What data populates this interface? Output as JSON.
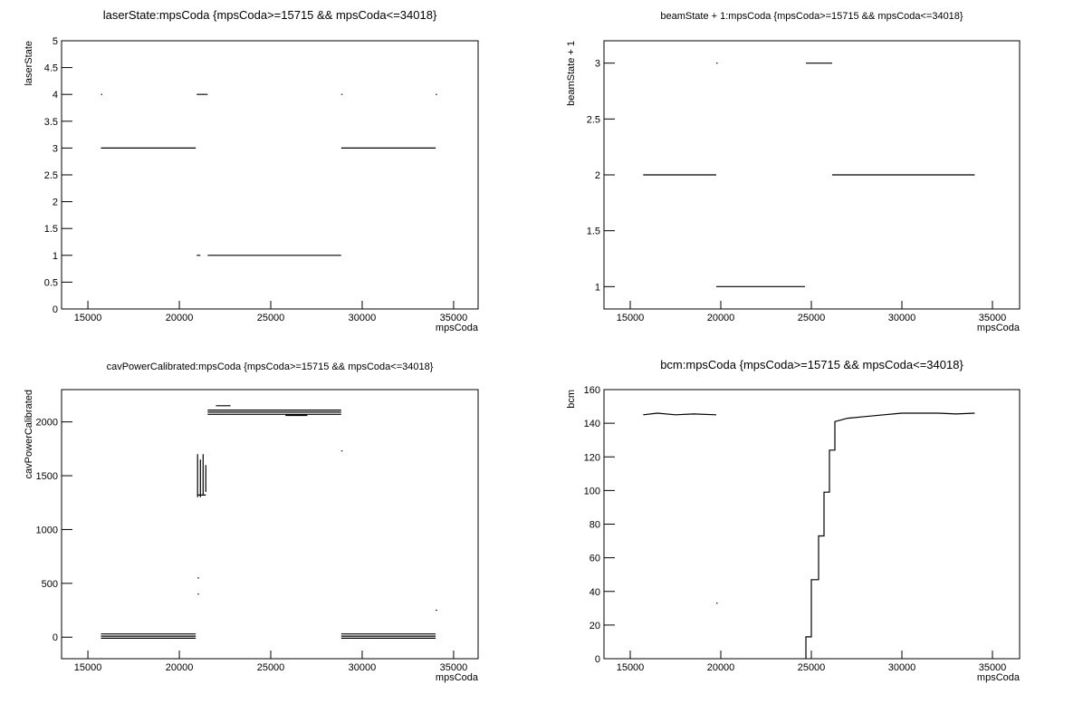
{
  "chart_data": [
    {
      "type": "line",
      "title": "laserState:mpsCoda {mpsCoda>=15715 && mpsCoda<=34018}",
      "x_label": "mpsCoda",
      "y_label": "laserState",
      "color": "#000000",
      "x": [
        15715,
        20900,
        null,
        20950,
        21550,
        null,
        20950,
        21150,
        null,
        21550,
        28850,
        null,
        28850,
        34018,
        null,
        15715,
        null,
        28850,
        null,
        34018
      ],
      "y": [
        3,
        3,
        null,
        4,
        4,
        null,
        1,
        1,
        null,
        1,
        1,
        null,
        3,
        3,
        null,
        4,
        null,
        4,
        null,
        4
      ],
      "xlim": [
        13560,
        36340
      ],
      "ylim": [
        0,
        5
      ],
      "xticks": [
        15000,
        20000,
        25000,
        30000,
        35000
      ],
      "yticks": [
        0,
        0.5,
        1,
        1.5,
        2,
        2.5,
        3,
        3.5,
        4,
        4.5,
        5
      ]
    },
    {
      "type": "line",
      "title": "beamState + 1:mpsCoda {mpsCoda>=15715 && mpsCoda<=34018}",
      "x_label": "mpsCoda",
      "y_label": "beamState + 1",
      "color": "#000000",
      "x": [
        15715,
        19750,
        null,
        19750,
        null,
        19750,
        24650,
        null,
        24700,
        26150,
        null,
        26150,
        34018
      ],
      "y": [
        2,
        2,
        null,
        3,
        null,
        1,
        1,
        null,
        3,
        3,
        null,
        2,
        2
      ],
      "xlim": [
        13550,
        36500
      ],
      "ylim": [
        0.8,
        3.2
      ],
      "xticks": [
        15000,
        20000,
        25000,
        30000,
        35000
      ],
      "yticks": [
        1,
        1.5,
        2,
        2.5,
        3
      ]
    },
    {
      "type": "line",
      "title": "cavPowerCalibrated:mpsCoda {mpsCoda>=15715 && mpsCoda<=34018}",
      "x_label": "mpsCoda",
      "y_label": "cavPowerCalibrated",
      "color": "#000000",
      "x": [
        15715,
        20900,
        null,
        15715,
        20900,
        null,
        15715,
        20900,
        null,
        21000,
        21000,
        null,
        21150,
        21150,
        null,
        21300,
        21300,
        null,
        21450,
        21450,
        null,
        21000,
        21450,
        null,
        21550,
        28850,
        null,
        21550,
        28850,
        null,
        21550,
        28850,
        null,
        22000,
        22800,
        null,
        25800,
        27000,
        null,
        28850,
        null,
        21000,
        null,
        21000,
        null,
        28850,
        34018,
        null,
        28850,
        34018,
        null,
        28850,
        34018,
        null,
        34018
      ],
      "y": [
        30,
        30,
        null,
        10,
        10,
        null,
        -10,
        -10,
        null,
        1300,
        1700,
        null,
        1300,
        1650,
        null,
        1320,
        1700,
        null,
        1350,
        1600,
        null,
        1320,
        1320,
        null,
        2110,
        2110,
        null,
        2090,
        2090,
        null,
        2070,
        2070,
        null,
        2150,
        2150,
        null,
        2060,
        2060,
        null,
        1730,
        null,
        550,
        null,
        400,
        null,
        30,
        30,
        null,
        10,
        10,
        null,
        -10,
        -10,
        null,
        250
      ],
      "xlim": [
        13560,
        36340
      ],
      "ylim": [
        -200,
        2300
      ],
      "xticks": [
        15000,
        20000,
        25000,
        30000,
        35000
      ],
      "yticks": [
        0,
        500,
        1000,
        1500,
        2000
      ]
    },
    {
      "type": "line",
      "title": "bcm:mpsCoda {mpsCoda>=15715 && mpsCoda<=34018}",
      "x_label": "mpsCoda",
      "y_label": "bcm",
      "color": "#000000",
      "x": [
        15715,
        16500,
        17500,
        18500,
        19750,
        null,
        19750,
        null,
        24700,
        24700,
        25000,
        25000,
        25400,
        25400,
        25700,
        25700,
        26000,
        26000,
        26300,
        26300,
        27000,
        28000,
        29000,
        30000,
        31000,
        32000,
        33000,
        34018
      ],
      "y": [
        145,
        146,
        145,
        145.5,
        145,
        null,
        33,
        null,
        0,
        13,
        13,
        47,
        47,
        73,
        73,
        99,
        99,
        124,
        124,
        141,
        143,
        144,
        145,
        146,
        146,
        146,
        145.5,
        146
      ],
      "xlim": [
        13550,
        36500
      ],
      "ylim": [
        0,
        160
      ],
      "xticks": [
        15000,
        20000,
        25000,
        30000,
        35000
      ],
      "yticks": [
        0,
        20,
        40,
        60,
        80,
        100,
        120,
        140,
        160
      ]
    }
  ]
}
